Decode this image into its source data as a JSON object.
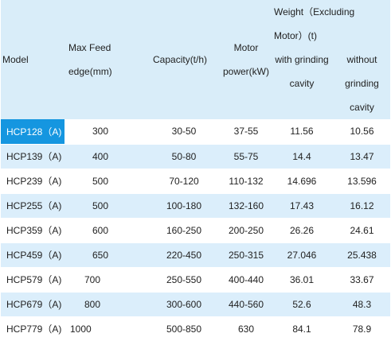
{
  "header": {
    "model": "Model",
    "max_feed_line1": "Max Feed",
    "max_feed_line2": "edge(mm)",
    "capacity": "Capacity(t/h)",
    "power_line1": "Motor",
    "power_line2": "power(kW)",
    "weight_line1": "Weight（Excluding",
    "weight_line2": "Motor）(t)",
    "with_line1": "with grinding",
    "with_line2": "cavity",
    "without_line1": "without",
    "without_line2": "grinding",
    "without_line3": "cavity"
  },
  "rows": [
    {
      "model": "HCP128（A)",
      "feed": "300",
      "capacity": "30-50",
      "power": "37-55",
      "with_cavity": "11.56",
      "without_cavity": "10.56"
    },
    {
      "model": "HCP139（A)",
      "feed": "400",
      "capacity": "50-80",
      "power": "55-75",
      "with_cavity": "14.4",
      "without_cavity": "13.47"
    },
    {
      "model": "HCP239（A)",
      "feed": "500",
      "capacity": "70-120",
      "power": "110-132",
      "with_cavity": "14.696",
      "without_cavity": "13.596"
    },
    {
      "model": "HCP255（A)",
      "feed": "500",
      "capacity": "100-180",
      "power": "132-160",
      "with_cavity": "17.43",
      "without_cavity": "16.12"
    },
    {
      "model": "HCP359（A)",
      "feed": "600",
      "capacity": "160-250",
      "power": "200-250",
      "with_cavity": "26.26",
      "without_cavity": "24.61"
    },
    {
      "model": "HCP459（A)",
      "feed": "650",
      "capacity": "220-450",
      "power": "250-315",
      "with_cavity": "27.046",
      "without_cavity": "25.438"
    },
    {
      "model": "HCP579（A)",
      "feed": "700",
      "capacity": "250-550",
      "power": "400-440",
      "with_cavity": "36.01",
      "without_cavity": "33.67"
    },
    {
      "model": "HCP679（A)",
      "feed": "800",
      "capacity": "300-600",
      "power": "440-560",
      "with_cavity": "52.6",
      "without_cavity": "48.3"
    },
    {
      "model": "HCP779（A)",
      "feed": "1000",
      "capacity": "500-850",
      "power": "630",
      "with_cavity": "84.1",
      "without_cavity": "78.9"
    }
  ],
  "colors": {
    "header_bg": "#d9edf9",
    "row_alt_bg": "#dbeefb",
    "selected_bg": "#1596e0",
    "text": "#222222"
  }
}
